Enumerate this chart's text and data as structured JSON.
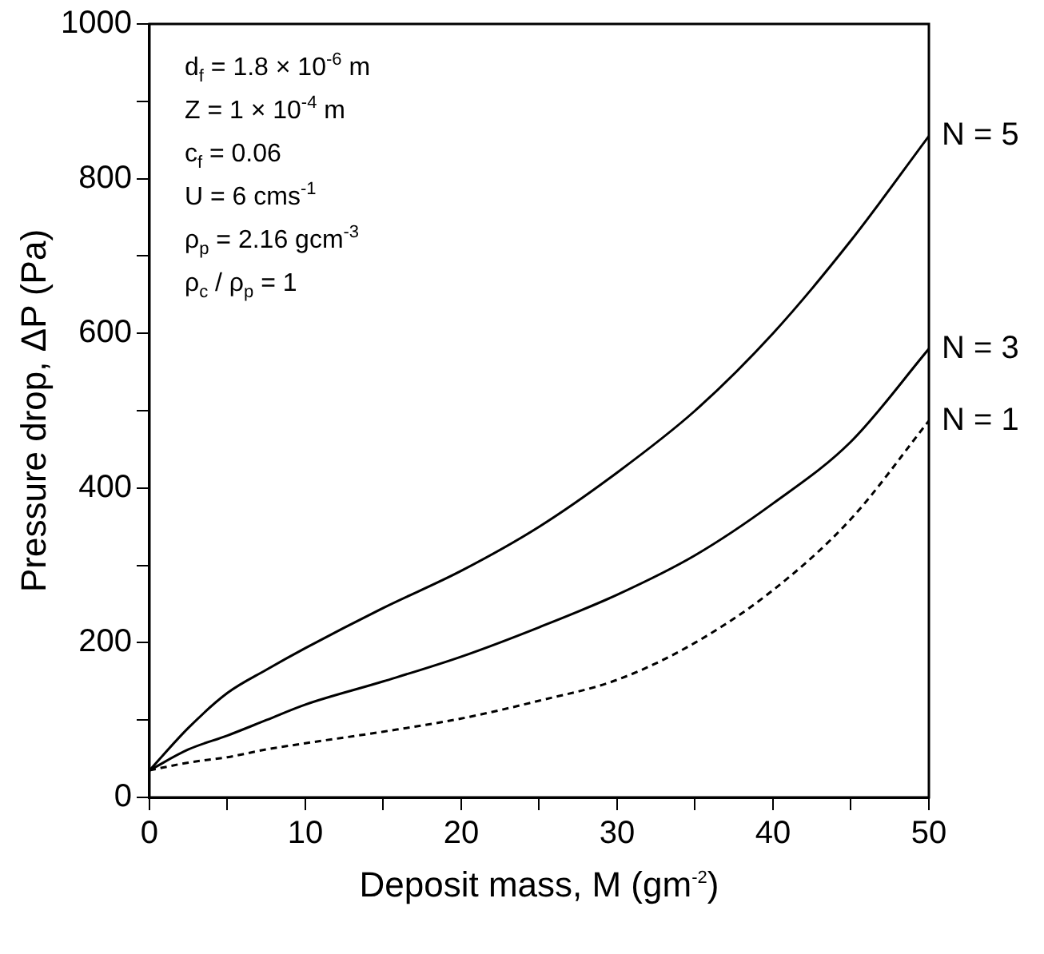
{
  "chart_data": {
    "type": "line",
    "xlabel": "Deposit mass, M (gm$^{-2}$)",
    "ylabel": "Pressure drop, ΔP (Pa)",
    "x": [
      0,
      2.5,
      5,
      7.5,
      10,
      15,
      20,
      25,
      30,
      35,
      40,
      45,
      50
    ],
    "series": [
      {
        "name": "N = 5",
        "color": "#000000",
        "line_style": "solid",
        "values": [
          35,
          90,
          135,
          165,
          193,
          245,
          293,
          350,
          420,
          500,
          600,
          720,
          855
        ]
      },
      {
        "name": "N = 3",
        "color": "#000000",
        "line_style": "solid",
        "values": [
          35,
          62,
          80,
          100,
          120,
          150,
          182,
          220,
          262,
          313,
          380,
          460,
          580
        ]
      },
      {
        "name": "N = 1",
        "color": "#000000",
        "line_style": "dashed",
        "values": [
          35,
          45,
          52,
          62,
          70,
          85,
          102,
          125,
          152,
          200,
          268,
          360,
          487
        ]
      }
    ],
    "xlim": [
      0,
      50
    ],
    "xticks": [
      0,
      {
        "value": 5,
        "label": null
      },
      10,
      {
        "value": 15,
        "label": null
      },
      20,
      {
        "value": 25,
        "label": null
      },
      30,
      {
        "value": 35,
        "label": null
      },
      40,
      {
        "value": 45,
        "label": null
      },
      50
    ],
    "ylim": [
      0,
      1000
    ],
    "yticks": [
      0,
      {
        "value": 100,
        "label": null
      },
      200,
      {
        "value": 300,
        "label": null
      },
      400,
      {
        "value": 500,
        "label": null
      },
      600,
      {
        "value": 700,
        "label": null
      },
      800,
      {
        "value": 900,
        "label": null
      },
      1000
    ],
    "annotations": [
      "d$_{f}$ = 1.8 × 10$^{-6}$ m",
      "Z = 1 × 10$^{-4}$ m",
      "c$_{f}$ = 0.06",
      "U = 6 cms$^{-1}$",
      "ρ$_{p}$ = 2.16 gcm$^{-3}$",
      "ρ$_{c}$ / ρ$_{p}$ = 1"
    ],
    "grid": false,
    "legend": false,
    "marker": "none"
  }
}
